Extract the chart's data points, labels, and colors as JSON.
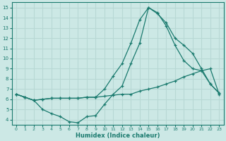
{
  "xlabel": "Humidex (Indice chaleur)",
  "xlim": [
    -0.5,
    23.5
  ],
  "ylim": [
    3.5,
    15.5
  ],
  "xticks": [
    0,
    1,
    2,
    3,
    4,
    5,
    6,
    7,
    8,
    9,
    10,
    11,
    12,
    13,
    14,
    15,
    16,
    17,
    18,
    19,
    20,
    21,
    22,
    23
  ],
  "yticks": [
    4,
    5,
    6,
    7,
    8,
    9,
    10,
    11,
    12,
    13,
    14,
    15
  ],
  "bg_color": "#cce8e5",
  "line_color": "#1a7a6e",
  "grid_color": "#b8d8d4",
  "lines": [
    [
      6.5,
      6.2,
      5.9,
      5.0,
      4.6,
      4.3,
      3.8,
      3.7,
      4.3,
      4.4,
      5.5,
      6.5,
      7.3,
      9.5,
      11.5,
      15.0,
      14.5,
      13.2,
      11.3,
      9.8,
      9.0,
      8.8,
      7.5,
      6.6
    ],
    [
      6.5,
      6.2,
      5.9,
      6.0,
      6.1,
      6.1,
      6.1,
      6.1,
      6.2,
      6.2,
      6.3,
      6.4,
      6.5,
      6.5,
      6.8,
      7.0,
      7.2,
      7.5,
      7.8,
      8.2,
      8.5,
      8.8,
      9.0,
      6.5
    ],
    [
      6.5,
      6.2,
      5.9,
      6.0,
      6.1,
      6.1,
      6.1,
      6.1,
      6.2,
      6.2,
      7.0,
      8.3,
      9.5,
      11.5,
      13.8,
      15.0,
      14.4,
      13.5,
      12.0,
      11.3,
      10.5,
      9.0,
      7.5,
      6.6
    ]
  ]
}
